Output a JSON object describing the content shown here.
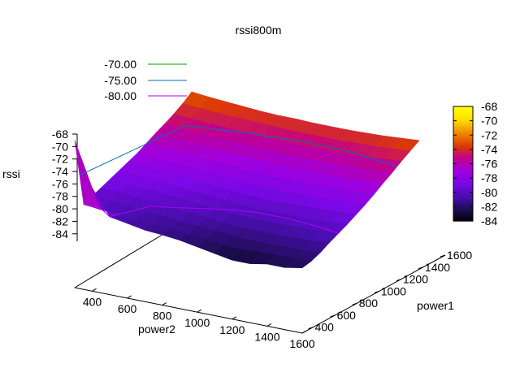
{
  "chart_data": {
    "type": "surface",
    "title": "rssi800m",
    "xlabel": "power2",
    "ylabel": "power1",
    "zlabel": "rssi",
    "x": [
      300,
      400,
      500,
      600,
      700,
      800,
      900,
      1000,
      1100,
      1200,
      1300,
      1400,
      1500,
      1600
    ],
    "y": [
      300,
      400,
      500,
      600,
      700,
      800,
      900,
      1000,
      1100,
      1200,
      1300,
      1400,
      1500,
      1600
    ],
    "xticks": [
      "400",
      "600",
      "800",
      "1000",
      "1200",
      "1400",
      "1600"
    ],
    "yticks": [
      "400",
      "600",
      "800",
      "1000",
      "1200",
      "1400",
      "1600"
    ],
    "zticks": [
      "-68",
      "-70",
      "-72",
      "-74",
      "-76",
      "-78",
      "-80",
      "-82",
      "-84"
    ],
    "xlim": [
      300,
      1600
    ],
    "ylim": [
      300,
      1600
    ],
    "zlim": [
      -85,
      -68
    ],
    "z_rows_by_y": [
      [
        -69,
        -76,
        -80,
        -80.5,
        -81,
        -81.2,
        -81.5,
        -82,
        -82.5,
        -83,
        -83,
        -82.5,
        -82.5,
        -82
      ],
      [
        -80,
        -80.3,
        -80.5,
        -80.8,
        -81,
        -81.2,
        -81.5,
        -81.8,
        -82,
        -82.2,
        -82,
        -82,
        -82,
        -81.8
      ],
      [
        -79.5,
        -79.8,
        -80,
        -80.3,
        -80.5,
        -80.8,
        -81,
        -81.2,
        -81.5,
        -81.6,
        -81.6,
        -81.5,
        -81.5,
        -81.3
      ],
      [
        -79,
        -79.2,
        -79.5,
        -79.8,
        -80,
        -80.2,
        -80.5,
        -80.8,
        -81,
        -81,
        -81,
        -80.9,
        -80.8,
        -80.6
      ],
      [
        -78.5,
        -78.8,
        -79,
        -79.2,
        -79.5,
        -79.8,
        -80,
        -80.2,
        -80.4,
        -80.4,
        -80.4,
        -80.3,
        -80.2,
        -80
      ],
      [
        -78,
        -78.3,
        -78.5,
        -78.7,
        -79,
        -79.2,
        -79.5,
        -79.7,
        -79.8,
        -79.8,
        -79.8,
        -79.7,
        -79.6,
        -79.4
      ],
      [
        -77.5,
        -77.8,
        -78,
        -78.2,
        -78.5,
        -78.7,
        -78.9,
        -79.1,
        -79.2,
        -79.2,
        -79.1,
        -79,
        -78.9,
        -78.7
      ],
      [
        -77,
        -77.2,
        -77.4,
        -77.6,
        -77.8,
        -78,
        -78.2,
        -78.4,
        -78.5,
        -78.5,
        -78.4,
        -78.3,
        -78.2,
        -78
      ],
      [
        -76.3,
        -76.5,
        -76.7,
        -76.9,
        -77.1,
        -77.3,
        -77.5,
        -77.6,
        -77.7,
        -77.7,
        -77.6,
        -77.5,
        -77.4,
        -77.2
      ],
      [
        -75.6,
        -75.8,
        -76,
        -76.2,
        -76.4,
        -76.5,
        -76.7,
        -76.8,
        -76.9,
        -76.9,
        -76.8,
        -76.7,
        -76.5,
        -76.3
      ],
      [
        -75,
        -75.2,
        -75.4,
        -75.6,
        -75.7,
        -75.8,
        -76,
        -76.1,
        -76.1,
        -76.1,
        -76,
        -75.9,
        -75.7,
        -75.5
      ],
      [
        -74.3,
        -74.5,
        -74.7,
        -74.8,
        -75,
        -75.1,
        -75.2,
        -75.3,
        -75.3,
        -75.3,
        -75.2,
        -75,
        -74.8,
        -74.6
      ],
      [
        -73.5,
        -73.7,
        -73.9,
        -74,
        -74.1,
        -74.2,
        -74.3,
        -74.4,
        -74.4,
        -74.4,
        -74.3,
        -74.2,
        -74,
        -73.8
      ],
      [
        -72.5,
        -72.8,
        -73,
        -73.2,
        -73.4,
        -73.5,
        -73.5,
        -73.6,
        -73.6,
        -73.6,
        -73.5,
        -73.4,
        -73.2,
        -73
      ]
    ],
    "contour_legend": [
      {
        "label": "-70.00",
        "color": "#009e00"
      },
      {
        "label": "-75.00",
        "color": "#0072b2"
      },
      {
        "label": "-80.00",
        "color": "#b000ff"
      }
    ],
    "colorbox": {
      "range": [
        -84,
        -68
      ],
      "ticks": [
        "-68",
        "-70",
        "-72",
        "-74",
        "-76",
        "-78",
        "-80",
        "-82",
        "-84"
      ],
      "palette": [
        "#000000",
        "#1f0d56",
        "#4a0eb0",
        "#7a08e6",
        "#a000e0",
        "#c2008c",
        "#dc3d00",
        "#f08a00",
        "#ffdd00",
        "#ffff00"
      ]
    },
    "grid": false,
    "legend_position": "top-left"
  }
}
